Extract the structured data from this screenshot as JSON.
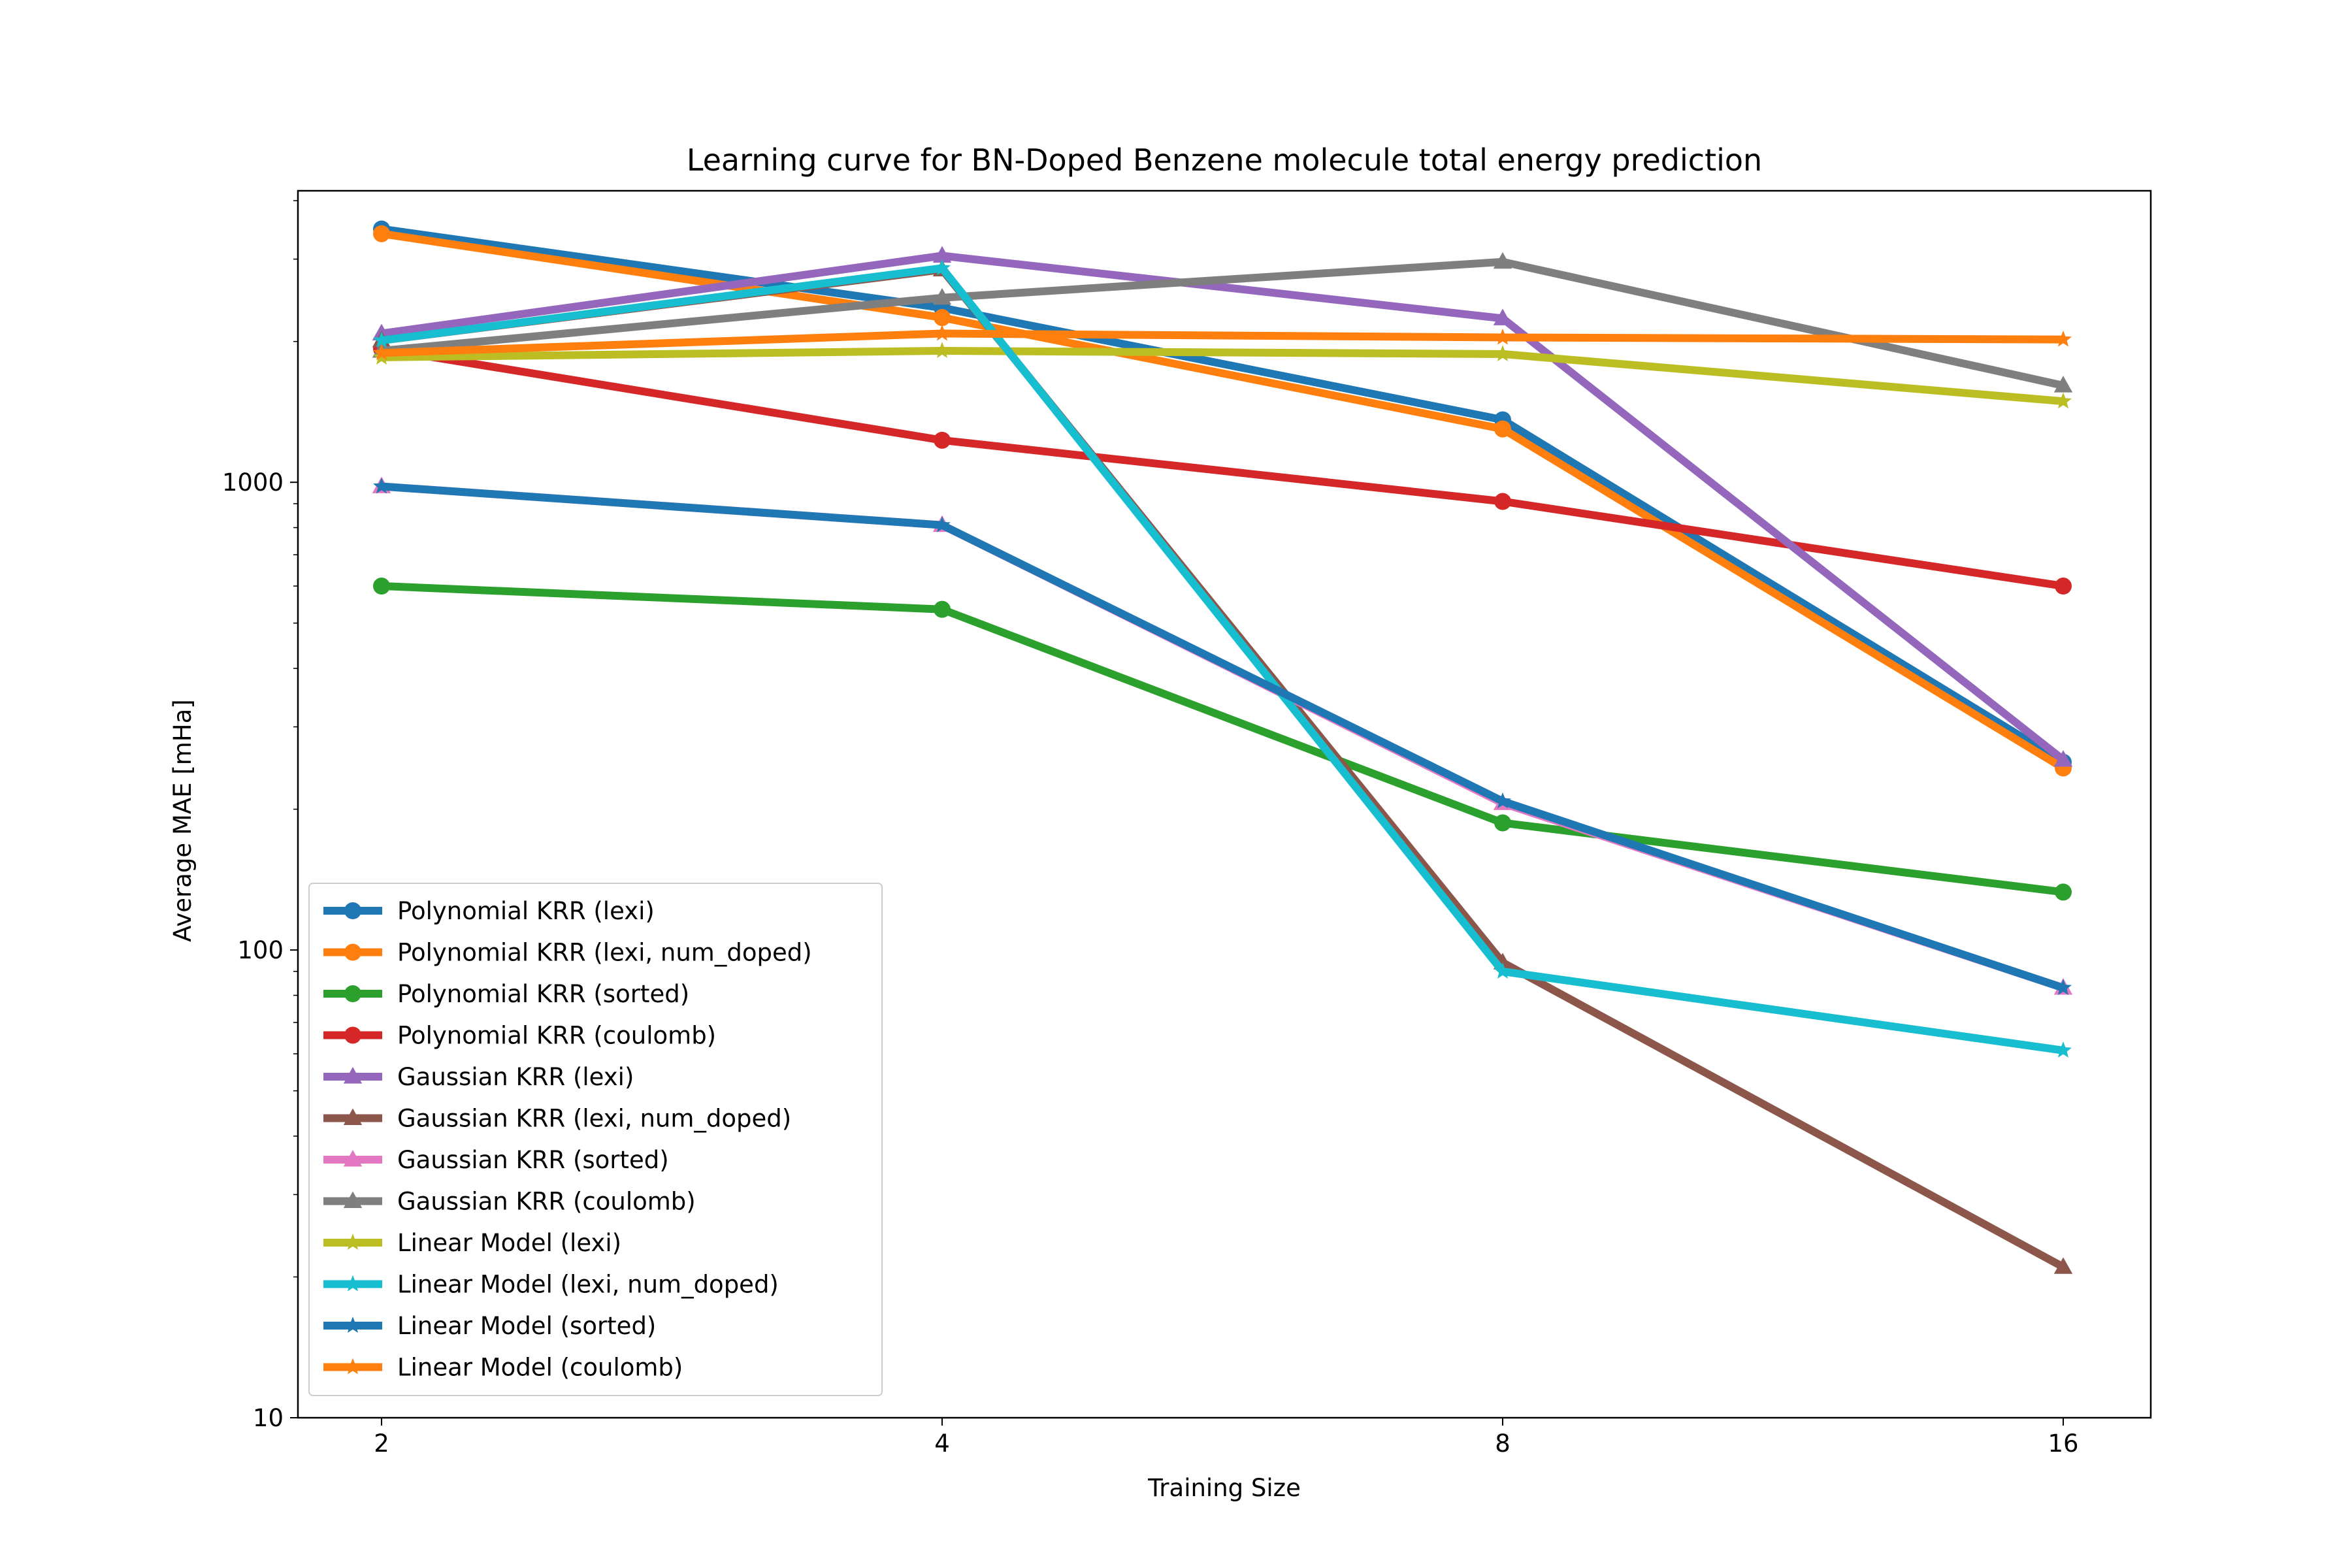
{
  "chart_data": {
    "type": "line",
    "title": "Learning curve for BN-Doped Benzene molecule total energy prediction",
    "xlabel": "Training Size",
    "ylabel": "Average MAE [mHa]",
    "x": [
      2,
      4,
      8,
      16
    ],
    "x_scale": "log2",
    "x_ticks": [
      "2",
      "4",
      "8",
      "16"
    ],
    "y_scale": "log",
    "ylim": [
      10,
      4200
    ],
    "y_ticks": [
      "10",
      "100",
      "1000"
    ],
    "grid": false,
    "legend_position": "lower-left",
    "series": [
      {
        "name": "Polynomial KRR (lexi)",
        "color": "#1f77b4",
        "marker": "circle",
        "values": [
          3480,
          2360,
          1360,
          252
        ]
      },
      {
        "name": "Polynomial KRR (lexi, num_doped)",
        "color": "#ff7f0e",
        "marker": "circle",
        "values": [
          3400,
          2250,
          1300,
          245
        ]
      },
      {
        "name": "Polynomial KRR (sorted)",
        "color": "#2ca02c",
        "marker": "circle",
        "values": [
          600,
          535,
          187,
          133
        ]
      },
      {
        "name": "Polynomial KRR (coulomb)",
        "color": "#d62728",
        "marker": "circle",
        "values": [
          1930,
          1230,
          910,
          600
        ]
      },
      {
        "name": "Gaussian KRR (lexi)",
        "color": "#9467bd",
        "marker": "triangle",
        "values": [
          2080,
          3050,
          2240,
          255
        ]
      },
      {
        "name": "Gaussian KRR (lexi, num_doped)",
        "color": "#8c564b",
        "marker": "triangle",
        "values": [
          2010,
          2850,
          94,
          21
        ]
      },
      {
        "name": "Gaussian KRR (sorted)",
        "color": "#e377c2",
        "marker": "triangle",
        "values": [
          980,
          810,
          206,
          83
        ]
      },
      {
        "name": "Gaussian KRR (coulomb)",
        "color": "#7f7f7f",
        "marker": "triangle",
        "values": [
          1910,
          2480,
          2960,
          1610
        ]
      },
      {
        "name": "Linear Model (lexi)",
        "color": "#bcbd22",
        "marker": "star",
        "values": [
          1850,
          1910,
          1880,
          1490
        ]
      },
      {
        "name": "Linear Model (lexi, num_doped)",
        "color": "#17becf",
        "marker": "star",
        "values": [
          2010,
          2870,
          90,
          61
        ]
      },
      {
        "name": "Linear Model (sorted)",
        "color": "#1f77b4",
        "marker": "star",
        "values": [
          980,
          810,
          208,
          83
        ]
      },
      {
        "name": "Linear Model (coulomb)",
        "color": "#ff7f0e",
        "marker": "star",
        "values": [
          1890,
          2080,
          2040,
          2020
        ]
      }
    ]
  }
}
